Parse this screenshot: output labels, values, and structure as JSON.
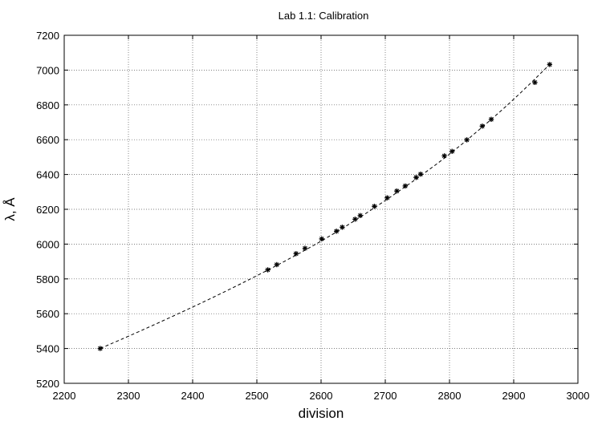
{
  "chart_data": {
    "type": "scatter",
    "title": "Lab 1.1: Calibration",
    "xlabel": "division",
    "ylabel": "λ, Å",
    "xlim": [
      2200,
      3000
    ],
    "ylim": [
      5200,
      7200
    ],
    "xticks": [
      2200,
      2300,
      2400,
      2500,
      2600,
      2700,
      2800,
      2900,
      3000
    ],
    "yticks": [
      5200,
      5400,
      5600,
      5800,
      6000,
      6200,
      6400,
      6600,
      6800,
      7000,
      7200
    ],
    "grid": true,
    "legend": "none",
    "series": [
      {
        "marker": "asterisk",
        "points": [
          [
            2256,
            5400
          ],
          [
            2517,
            5852
          ],
          [
            2531,
            5882
          ],
          [
            2561,
            5945
          ],
          [
            2575,
            5976
          ],
          [
            2601,
            6030
          ],
          [
            2624,
            6074
          ],
          [
            2633,
            6097
          ],
          [
            2653,
            6143
          ],
          [
            2661,
            6164
          ],
          [
            2683,
            6217
          ],
          [
            2703,
            6266
          ],
          [
            2718,
            6305
          ],
          [
            2731,
            6334
          ],
          [
            2748,
            6383
          ],
          [
            2755,
            6402
          ],
          [
            2792,
            6507
          ],
          [
            2804,
            6533
          ],
          [
            2827,
            6599
          ],
          [
            2851,
            6678
          ],
          [
            2865,
            6717
          ],
          [
            2933,
            6929
          ],
          [
            2956,
            7032
          ]
        ]
      }
    ],
    "fit": {
      "style": "dashed",
      "x": [
        2256,
        2300,
        2350,
        2400,
        2450,
        2500,
        2550,
        2600,
        2650,
        2700,
        2750,
        2800,
        2850,
        2900,
        2956
      ],
      "y": [
        5400,
        5470,
        5553,
        5638,
        5726,
        5818,
        5914,
        6016,
        6128,
        6250,
        6378,
        6515,
        6668,
        6830,
        7032
      ]
    }
  }
}
